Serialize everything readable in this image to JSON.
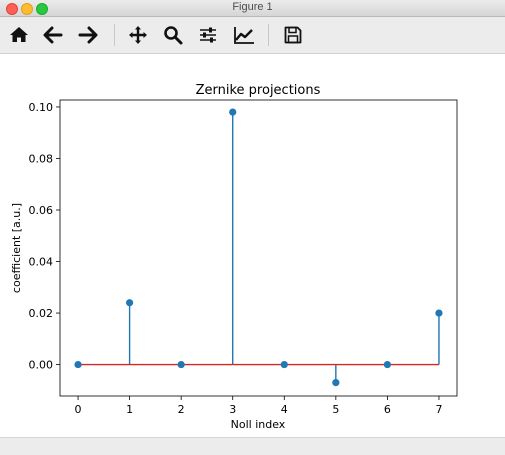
{
  "window": {
    "title": "Figure 1"
  },
  "toolbar": {
    "buttons": [
      {
        "name": "home-icon",
        "tooltip": ""
      },
      {
        "name": "back-arrow-icon",
        "tooltip": ""
      },
      {
        "name": "forward-arrow-icon",
        "tooltip": ""
      },
      {
        "name": "pan-move-icon",
        "tooltip": ""
      },
      {
        "name": "zoom-magnifier-icon",
        "tooltip": ""
      },
      {
        "name": "subplots-sliders-icon",
        "tooltip": ""
      },
      {
        "name": "edit-axes-chart-icon",
        "tooltip": ""
      },
      {
        "name": "save-floppy-icon",
        "tooltip": ""
      }
    ]
  },
  "chart_data": {
    "type": "stem",
    "title": "Zernike projections",
    "xlabel": "Noll index",
    "ylabel": "coefficient [a.u.]",
    "x": [
      0,
      1,
      2,
      3,
      4,
      5,
      6,
      7
    ],
    "values": [
      0.0,
      0.024,
      0.0,
      0.098,
      0.0,
      -0.007,
      0.0,
      0.02
    ],
    "xlim": [
      -0.35,
      7.35
    ],
    "ylim": [
      -0.0122,
      0.1027
    ],
    "xticks": [
      "0",
      "1",
      "2",
      "3",
      "4",
      "5",
      "6",
      "7"
    ],
    "yticks": [
      "0.00",
      "0.02",
      "0.04",
      "0.06",
      "0.08",
      "0.10"
    ],
    "ytick_values": [
      0.0,
      0.02,
      0.04,
      0.06,
      0.08,
      0.1
    ],
    "grid": false,
    "colors": {
      "stem": "#1f77b4",
      "marker": "#1f77b4",
      "baseline": "#d62728"
    }
  }
}
